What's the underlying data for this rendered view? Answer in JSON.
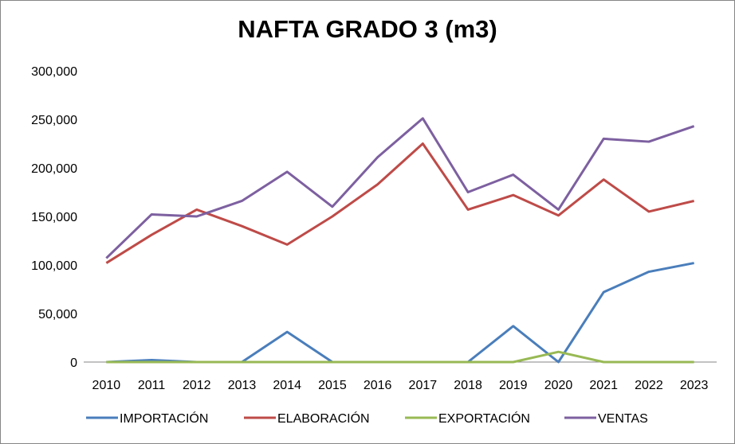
{
  "chart_data": {
    "type": "line",
    "title": "NAFTA GRADO 3 (m3)",
    "xlabel": "",
    "ylabel": "",
    "ylim": [
      0,
      300000
    ],
    "yticks": [
      "0",
      "50,000",
      "100,000",
      "150,000",
      "200,000",
      "250,000",
      "300,000"
    ],
    "ytick_values": [
      0,
      50000,
      100000,
      150000,
      200000,
      250000,
      300000
    ],
    "grid": false,
    "legend_position": "bottom",
    "categories": [
      "2010",
      "2011",
      "2012",
      "2013",
      "2014",
      "2015",
      "2016",
      "2017",
      "2018",
      "2019",
      "2020",
      "2021",
      "2022",
      "2023"
    ],
    "series": [
      {
        "name": "IMPORTACIÓN",
        "color": "#4a7ebb",
        "values": [
          0,
          2000,
          0,
          0,
          31000,
          0,
          0,
          0,
          0,
          37000,
          0,
          72000,
          93000,
          102000
        ]
      },
      {
        "name": "ELABORACIÓN",
        "color": "#be4b48",
        "values": [
          102000,
          131000,
          157000,
          140000,
          121000,
          150000,
          183000,
          225000,
          157000,
          172000,
          151000,
          188000,
          155000,
          166000
        ]
      },
      {
        "name": "EXPORTACIÓN",
        "color": "#98b954",
        "values": [
          0,
          0,
          0,
          0,
          0,
          0,
          0,
          0,
          0,
          0,
          10500,
          0,
          0,
          0
        ]
      },
      {
        "name": "VENTAS",
        "color": "#7d60a0",
        "values": [
          107000,
          152000,
          150000,
          166000,
          196000,
          160000,
          211000,
          251000,
          175000,
          193000,
          157000,
          230000,
          227000,
          243000
        ]
      }
    ]
  }
}
